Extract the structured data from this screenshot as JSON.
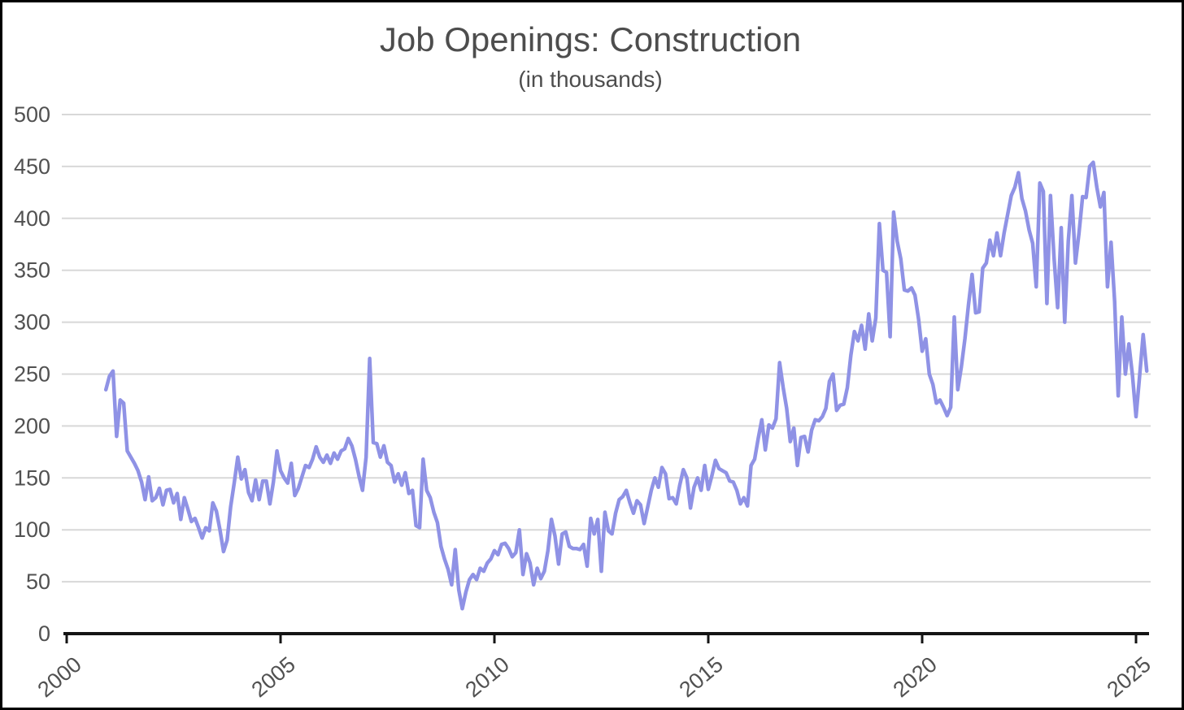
{
  "chart": {
    "title": "Job Openings: Construction",
    "subtitle": "(in thousands)",
    "line_color": "#8f92e5",
    "grid_color": "#d8d8d8",
    "axis_color": "#141414",
    "text_color": "#4d4d4d",
    "tick_label_color": "#515151",
    "background_color": "#ffffff",
    "border_color": "#000000"
  },
  "chart_data": {
    "type": "line",
    "title": "Job Openings: Construction",
    "subtitle": "(in thousands)",
    "frequency": "monthly",
    "series_start": "2000-12",
    "series_end": "2025-04",
    "ylim": [
      0,
      500
    ],
    "ytick_step": 50,
    "yticks": [
      0,
      50,
      100,
      150,
      200,
      250,
      300,
      350,
      400,
      450,
      500
    ],
    "xticks": [
      2000,
      2005,
      2010,
      2015,
      2020,
      2025
    ],
    "grid": true,
    "legend": false,
    "values": [
      235,
      248,
      253,
      190,
      225,
      222,
      176,
      170,
      164,
      157,
      146,
      129,
      151,
      128,
      131,
      140,
      124,
      138,
      139,
      126,
      135,
      110,
      131,
      120,
      108,
      111,
      102,
      92,
      102,
      99,
      126,
      118,
      100,
      79,
      90,
      122,
      145,
      170,
      149,
      158,
      136,
      128,
      148,
      129,
      147,
      147,
      125,
      146,
      176,
      157,
      150,
      145,
      164,
      133,
      140,
      151,
      162,
      160,
      168,
      180,
      170,
      165,
      172,
      164,
      174,
      168,
      176,
      178,
      188,
      181,
      168,
      152,
      138,
      170,
      265,
      184,
      183,
      170,
      181,
      165,
      162,
      146,
      154,
      143,
      155,
      135,
      138,
      104,
      102,
      168,
      138,
      131,
      117,
      107,
      84,
      72,
      62,
      47,
      81,
      42,
      24,
      40,
      52,
      57,
      52,
      63,
      60,
      68,
      72,
      80,
      76,
      86,
      87,
      82,
      74,
      78,
      100,
      57,
      77,
      68,
      47,
      63,
      53,
      60,
      80,
      110,
      94,
      67,
      96,
      98,
      84,
      82,
      82,
      81,
      86,
      65,
      111,
      96,
      110,
      60,
      117,
      99,
      96,
      116,
      129,
      132,
      138,
      126,
      116,
      128,
      124,
      106,
      122,
      138,
      150,
      141,
      160,
      154,
      130,
      131,
      125,
      143,
      158,
      150,
      121,
      141,
      150,
      138,
      162,
      139,
      152,
      167,
      159,
      157,
      155,
      147,
      146,
      138,
      125,
      131,
      123,
      162,
      168,
      188,
      206,
      177,
      201,
      198,
      207,
      261,
      237,
      217,
      185,
      198,
      162,
      189,
      190,
      175,
      196,
      206,
      205,
      209,
      217,
      243,
      250,
      215,
      220,
      221,
      237,
      268,
      291,
      282,
      297,
      274,
      308,
      282,
      304,
      395,
      350,
      348,
      286,
      406,
      378,
      361,
      331,
      330,
      333,
      326,
      303,
      272,
      284,
      250,
      240,
      222,
      225,
      218,
      210,
      218,
      305,
      235,
      257,
      284,
      317,
      346,
      309,
      310,
      352,
      357,
      379,
      364,
      386,
      364,
      386,
      404,
      422,
      430,
      444,
      419,
      407,
      389,
      376,
      334,
      434,
      426,
      318,
      422,
      362,
      314,
      391,
      300,
      378,
      422,
      357,
      386,
      421,
      420,
      450,
      454,
      430,
      411,
      425,
      334,
      377,
      320,
      229,
      305,
      250,
      279,
      249,
      209,
      248,
      288,
      253
    ]
  }
}
